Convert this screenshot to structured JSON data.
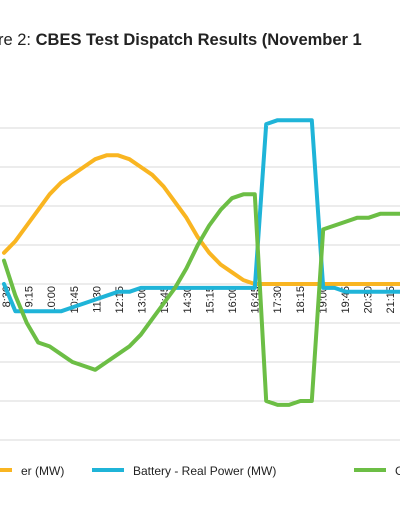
{
  "chart_data": {
    "type": "line",
    "title_prefix": "re 2: ",
    "title": "CBES Test Dispatch Results (November 1",
    "x_labels": [
      "8:30",
      "9:15",
      "10:00",
      "10:45",
      "11:30",
      "12:15",
      "13:00",
      "13:45",
      "14:30",
      "15:15",
      "16:00",
      "16:45",
      "17:30",
      "18:15",
      "19:00",
      "19:45",
      "20:30",
      "21:15"
    ],
    "grid": true,
    "legend_position": "bottom",
    "series": [
      {
        "name": "er (MW)",
        "color": "#F9B521",
        "values": [
          0.8,
          1.1,
          1.5,
          1.9,
          2.3,
          2.6,
          2.8,
          3.0,
          3.2,
          3.3,
          3.3,
          3.2,
          3.0,
          2.8,
          2.5,
          2.1,
          1.7,
          1.2,
          0.8,
          0.5,
          0.3,
          0.1,
          0.0,
          0.0,
          0.0,
          0.0,
          0.0,
          0.0,
          0.0,
          0.0,
          0.0,
          0.0,
          0.0,
          0.0,
          0.0,
          0.0
        ]
      },
      {
        "name": "Battery - Real Power (MW)",
        "color": "#1FB4D8",
        "values": [
          0.0,
          -0.7,
          -0.7,
          -0.7,
          -0.7,
          -0.7,
          -0.6,
          -0.5,
          -0.4,
          -0.3,
          -0.2,
          -0.2,
          -0.1,
          -0.1,
          -0.1,
          -0.1,
          -0.1,
          -0.1,
          -0.1,
          -0.1,
          -0.1,
          -0.1,
          -0.1,
          4.1,
          4.2,
          4.2,
          4.2,
          4.2,
          -0.1,
          -0.1,
          -0.2,
          -0.2,
          -0.2,
          -0.2,
          -0.2,
          -0.2
        ]
      },
      {
        "name": "G",
        "color": "#6CBE45",
        "values": [
          0.6,
          -0.3,
          -1.0,
          -1.5,
          -1.6,
          -1.8,
          -2.0,
          -2.1,
          -2.2,
          -2.0,
          -1.8,
          -1.6,
          -1.3,
          -0.9,
          -0.5,
          -0.1,
          0.4,
          1.0,
          1.5,
          1.9,
          2.2,
          2.3,
          2.3,
          -3.0,
          -3.1,
          -3.1,
          -3.0,
          -3.0,
          1.4,
          1.5,
          1.6,
          1.7,
          1.7,
          1.8,
          1.8,
          1.8
        ]
      }
    ],
    "legend": [
      {
        "label": "er (MW)",
        "color": "#F9B521"
      },
      {
        "label": "Battery - Real Power (MW)",
        "color": "#1FB4D8"
      },
      {
        "label": "G",
        "color": "#6CBE45"
      }
    ]
  }
}
